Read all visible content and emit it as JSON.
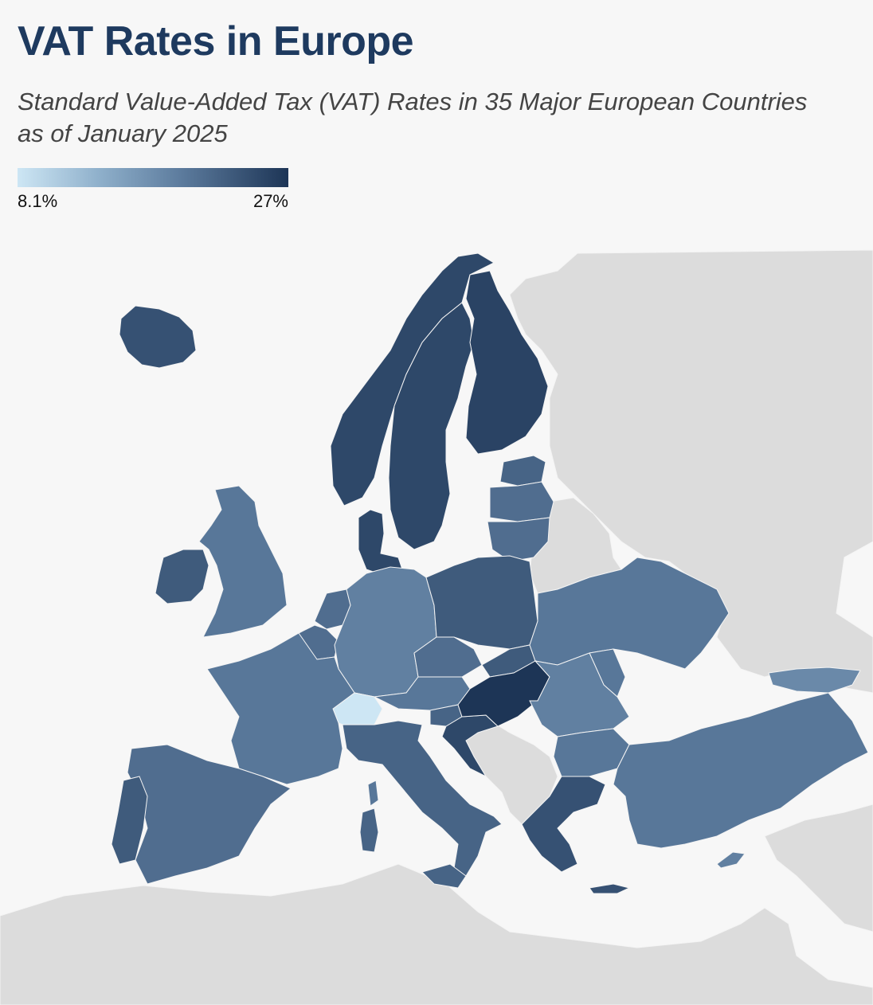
{
  "header": {
    "title": "VAT Rates in Europe",
    "subtitle_line1": "Standard Value-Added Tax (VAT) Rates in 35 Major European Countries",
    "subtitle_line2": "as of January 2025"
  },
  "legend": {
    "min_label": "8.1%",
    "max_label": "27%",
    "color_low": "#cde6f4",
    "color_high": "#1d3556"
  },
  "colors": {
    "background": "#f7f7f7",
    "sea": "#f7f7f7",
    "no_data_land": "#dcdcdc",
    "title": "#1e3a5f"
  },
  "chart_data": {
    "type": "choropleth",
    "value_unit": "%",
    "scale_min": 8.1,
    "scale_max": 27,
    "regions": [
      {
        "id": "iceland",
        "value": 24
      },
      {
        "id": "norway",
        "value": 25
      },
      {
        "id": "sweden",
        "value": 25
      },
      {
        "id": "finland",
        "value": 25.5
      },
      {
        "id": "denmark",
        "value": 25
      },
      {
        "id": "estonia",
        "value": 22
      },
      {
        "id": "latvia",
        "value": 21
      },
      {
        "id": "lithuania",
        "value": 21
      },
      {
        "id": "ireland",
        "value": 23
      },
      {
        "id": "uk",
        "value": 20
      },
      {
        "id": "netherlands",
        "value": 21
      },
      {
        "id": "belgium",
        "value": 21
      },
      {
        "id": "germany",
        "value": 19
      },
      {
        "id": "poland",
        "value": 23
      },
      {
        "id": "czechia",
        "value": 21
      },
      {
        "id": "slovakia",
        "value": 23
      },
      {
        "id": "austria",
        "value": 20
      },
      {
        "id": "switzerland",
        "value": 8.1
      },
      {
        "id": "france",
        "value": 20
      },
      {
        "id": "spain",
        "value": 21
      },
      {
        "id": "portugal",
        "value": 23
      },
      {
        "id": "italy",
        "value": 22
      },
      {
        "id": "slovenia",
        "value": 22
      },
      {
        "id": "croatia",
        "value": 25
      },
      {
        "id": "hungary",
        "value": 27
      },
      {
        "id": "ukraine",
        "value": 20
      },
      {
        "id": "romania",
        "value": 19
      },
      {
        "id": "moldova",
        "value": 20
      },
      {
        "id": "bulgaria",
        "value": 20
      },
      {
        "id": "greece",
        "value": 24
      },
      {
        "id": "turkey",
        "value": 20
      },
      {
        "id": "cyprus",
        "value": 19
      },
      {
        "id": "georgia",
        "value": 18
      },
      {
        "id": "sardinia",
        "value": 22
      },
      {
        "id": "corsica",
        "value": 20
      }
    ]
  }
}
